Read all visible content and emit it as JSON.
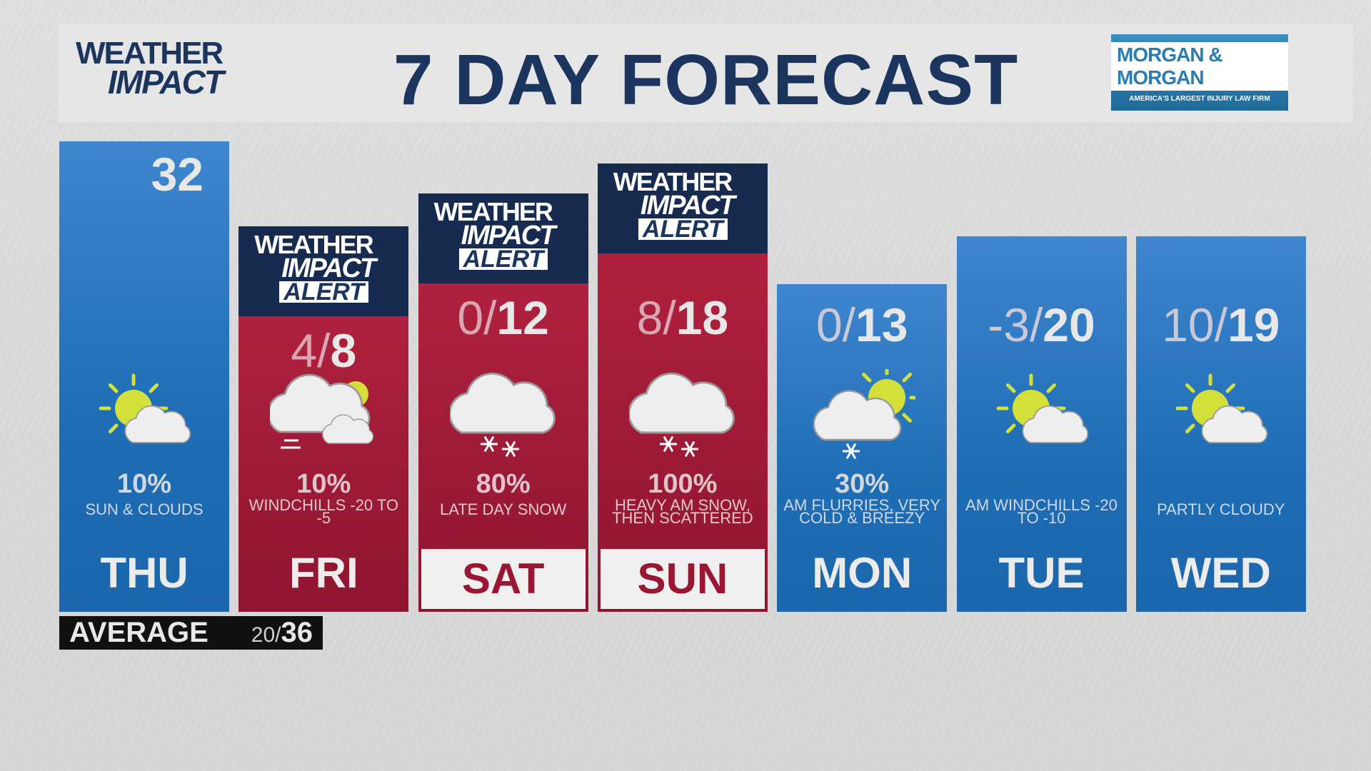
{
  "header": {
    "logo": {
      "line1": "WEATHER",
      "line2": "IMPACT"
    },
    "title": "7 DAY FORECAST",
    "sponsor": {
      "name": "MORGAN & MORGAN",
      "tagline": "AMERICA'S LARGEST INJURY LAW FIRM"
    }
  },
  "alert_logo": {
    "line1": "WEATHER",
    "line2": "IMPACT",
    "line3": "ALERT"
  },
  "days": [
    {
      "day": "THU",
      "low": "",
      "high": "32",
      "sep": "",
      "precip": "10%",
      "desc": "SUN & CLOUDS",
      "icon": "sun-cloud-icon",
      "alert": false,
      "theme": "blue"
    },
    {
      "day": "FRI",
      "low": "4",
      "high": "8",
      "sep": "/",
      "precip": "10%",
      "desc": "WINDCHILLS -20 TO -5",
      "icon": "cloud-sun-wind-icon",
      "alert": true,
      "theme": "red"
    },
    {
      "day": "SAT",
      "low": "0",
      "high": "12",
      "sep": "/",
      "precip": "80%",
      "desc": "LATE DAY SNOW",
      "icon": "snow-cloud-icon",
      "alert": true,
      "theme": "red"
    },
    {
      "day": "SUN",
      "low": "8",
      "high": "18",
      "sep": "/",
      "precip": "100%",
      "desc": "HEAVY AM SNOW, THEN SCATTERED",
      "icon": "snow-cloud-icon",
      "alert": true,
      "theme": "red"
    },
    {
      "day": "MON",
      "low": "0",
      "high": "13",
      "sep": "/",
      "precip": "30%",
      "desc": "AM FLURRIES, VERY COLD & BREEZY",
      "icon": "sun-cloud-snow-icon",
      "alert": false,
      "theme": "blue"
    },
    {
      "day": "TUE",
      "low": "-3",
      "high": "20",
      "sep": "/",
      "precip": "",
      "desc": "AM WINDCHILLS -20 TO -10",
      "icon": "sun-cloud-icon",
      "alert": false,
      "theme": "blue"
    },
    {
      "day": "WED",
      "low": "10",
      "high": "19",
      "sep": "/",
      "precip": "",
      "desc": "PARTLY CLOUDY",
      "icon": "sun-cloud-icon",
      "alert": false,
      "theme": "blue"
    }
  ],
  "average": {
    "label": "AVERAGE",
    "low": "20",
    "sep": "/",
    "high": "36"
  },
  "colors": {
    "blue": "#1e6db5",
    "red": "#9a1733",
    "navy": "#1b355f",
    "sun": "#d4e03a"
  }
}
